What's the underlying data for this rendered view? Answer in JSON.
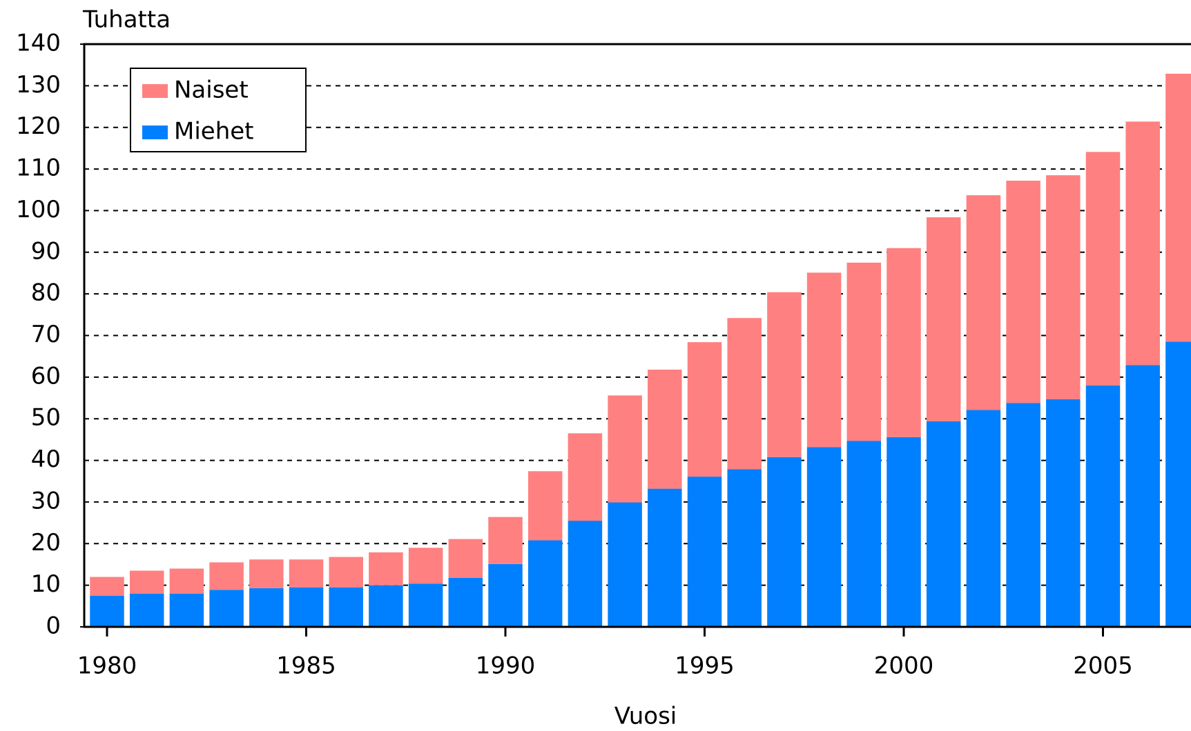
{
  "chart_data": {
    "type": "stacked_bar",
    "y_label": "Tuhatta",
    "x_label": "Vuosi",
    "categories": [
      "1980",
      null,
      null,
      null,
      null,
      "1985",
      null,
      null,
      null,
      null,
      "1990",
      null,
      null,
      null,
      null,
      "1995",
      null,
      null,
      null,
      null,
      "2000",
      null,
      null,
      null,
      null,
      "2005",
      null,
      null
    ],
    "series": [
      {
        "name": "Naiset",
        "color": "#ff8080",
        "values": [
          4.5,
          5.5,
          6.0,
          6.6,
          6.9,
          6.7,
          7.3,
          7.9,
          8.6,
          9.3,
          11.3,
          16.6,
          21.0,
          25.7,
          28.6,
          32.3,
          36.3,
          39.6,
          41.9,
          42.8,
          45.4,
          49.0,
          51.6,
          53.4,
          53.8,
          56.1,
          58.5,
          64.4
        ]
      },
      {
        "name": "Miehet",
        "color": "#0080ff",
        "values": [
          7.5,
          8.0,
          8.0,
          8.9,
          9.3,
          9.5,
          9.5,
          10.0,
          10.4,
          11.8,
          15.1,
          20.8,
          25.5,
          29.9,
          33.2,
          36.1,
          37.9,
          40.8,
          43.2,
          44.7,
          45.6,
          49.4,
          52.1,
          53.8,
          54.7,
          58.0,
          62.9,
          68.5
        ]
      }
    ],
    "ylim": [
      0,
      140
    ],
    "yticks": [
      0,
      10,
      20,
      30,
      40,
      50,
      60,
      70,
      80,
      90,
      100,
      110,
      120,
      130,
      140
    ],
    "grid": true,
    "legend": "upper left"
  }
}
